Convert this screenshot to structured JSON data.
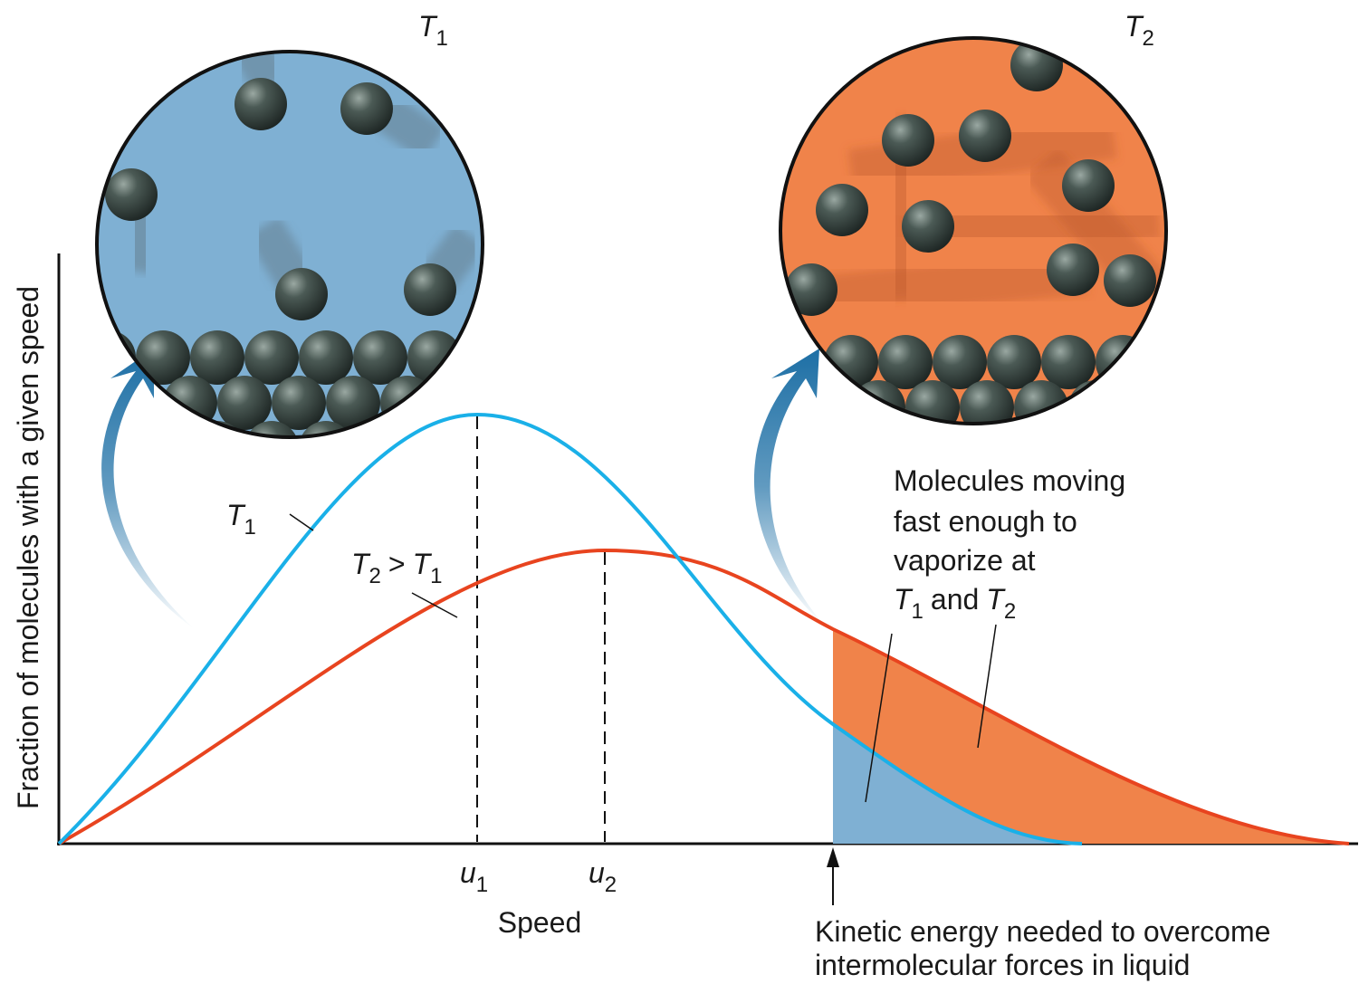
{
  "circles": [
    {
      "label": {
        "symbol": "T",
        "subscript": "1"
      }
    },
    {
      "label": {
        "symbol": "T",
        "subscript": "2"
      }
    }
  ],
  "curves": [
    {
      "label": {
        "symbol": "T",
        "subscript": "1"
      }
    },
    {
      "label": {
        "symbol": "T",
        "subscript": "2",
        "relation": ">",
        "other_symbol": "T",
        "other_subscript": "1"
      }
    }
  ],
  "axes": {
    "y_label": "Fraction of molecules with a given speed",
    "x_label": "Speed"
  },
  "speed_markers": [
    {
      "symbol": "u",
      "subscript": "1"
    },
    {
      "symbol": "u",
      "subscript": "2"
    }
  ],
  "vaporize_note": {
    "lines": [
      "Molecules moving",
      "fast enough to",
      "vaporize at"
    ],
    "last_line": {
      "symbol_1": "T",
      "subscript_1": "1",
      "conjunction": "and",
      "symbol_2": "T",
      "subscript_2": "2"
    }
  },
  "threshold_note": {
    "lines": [
      "Kinetic energy needed to overcome",
      "intermolecular forces in liquid"
    ]
  }
}
